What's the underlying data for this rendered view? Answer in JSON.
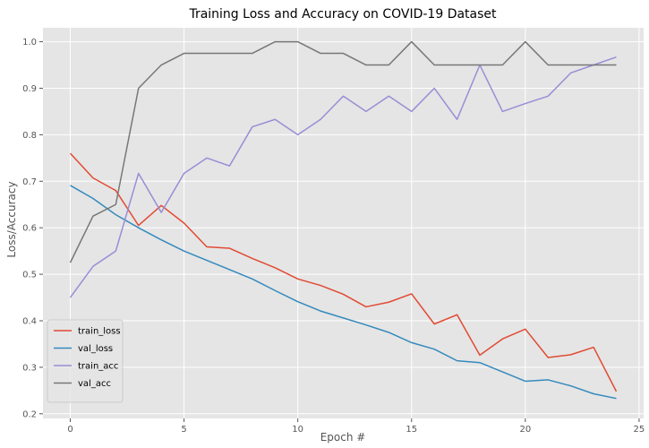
{
  "chart_data": {
    "type": "line",
    "title": "Training Loss and Accuracy on COVID-19 Dataset",
    "xlabel": "Epoch #",
    "ylabel": "Loss/Accuracy",
    "xlim": [
      -1.2,
      25.2
    ],
    "ylim": [
      0.19,
      1.03
    ],
    "xticks": [
      0,
      5,
      10,
      15,
      20,
      25
    ],
    "yticks": [
      0.2,
      0.3,
      0.4,
      0.5,
      0.6,
      0.7,
      0.8,
      0.9,
      1.0
    ],
    "ytick_labels": [
      "0.2",
      "0.3",
      "0.4",
      "0.5",
      "0.6",
      "0.7",
      "0.8",
      "0.9",
      "1.0"
    ],
    "grid": true,
    "legend_position": "lower-left",
    "x": [
      0,
      1,
      2,
      3,
      4,
      5,
      6,
      7,
      8,
      9,
      10,
      11,
      12,
      13,
      14,
      15,
      16,
      17,
      18,
      19,
      20,
      21,
      22,
      23,
      24
    ],
    "series": [
      {
        "name": "train_loss",
        "color": "#E24A33",
        "values": [
          0.76,
          0.707,
          0.68,
          0.605,
          0.648,
          0.61,
          0.559,
          0.556,
          0.534,
          0.514,
          0.49,
          0.476,
          0.457,
          0.43,
          0.44,
          0.458,
          0.393,
          0.413,
          0.326,
          0.361,
          0.382,
          0.321,
          0.327,
          0.343,
          0.248
        ]
      },
      {
        "name": "val_loss",
        "color": "#348ABD",
        "values": [
          0.691,
          0.663,
          0.628,
          0.6,
          0.574,
          0.55,
          0.53,
          0.51,
          0.49,
          0.465,
          0.441,
          0.421,
          0.406,
          0.391,
          0.375,
          0.353,
          0.339,
          0.314,
          0.31,
          0.29,
          0.27,
          0.273,
          0.26,
          0.243,
          0.233
        ]
      },
      {
        "name": "train_acc",
        "color": "#988ED5",
        "values": [
          0.45,
          0.517,
          0.55,
          0.717,
          0.633,
          0.717,
          0.75,
          0.733,
          0.817,
          0.833,
          0.8,
          0.833,
          0.883,
          0.85,
          0.883,
          0.85,
          0.9,
          0.833,
          0.95,
          0.85,
          0.867,
          0.883,
          0.933,
          0.95,
          0.967
        ]
      },
      {
        "name": "val_acc",
        "color": "#777777",
        "values": [
          0.525,
          0.625,
          0.65,
          0.9,
          0.95,
          0.975,
          0.975,
          0.975,
          0.975,
          1.0,
          1.0,
          0.975,
          0.975,
          0.95,
          0.95,
          1.0,
          0.95,
          0.95,
          0.95,
          0.95,
          1.0,
          0.95,
          0.95,
          0.95,
          0.95
        ]
      }
    ]
  }
}
